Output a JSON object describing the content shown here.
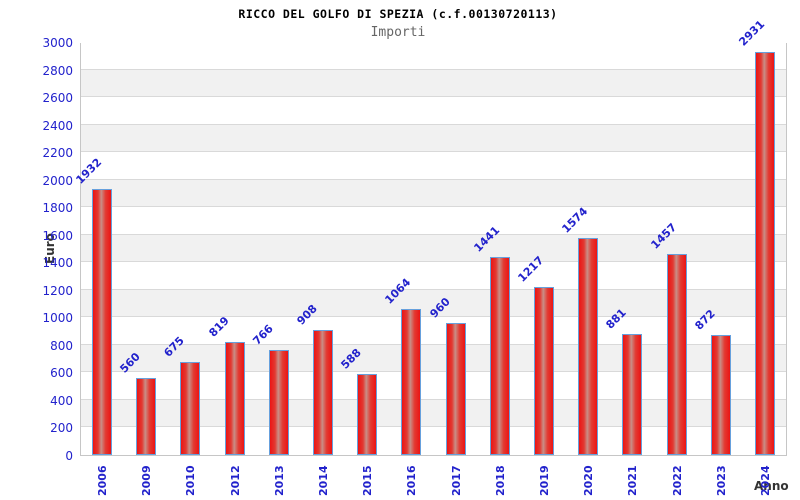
{
  "title": "RICCO DEL GOLFO DI SPEZIA (c.f.00130720113)",
  "subtitle": "Importi",
  "chart_data": {
    "type": "bar",
    "title": "RICCO DEL GOLFO DI SPEZIA (c.f.00130720113)",
    "subtitle": "Importi",
    "xlabel": "Anno",
    "ylabel": "Euro",
    "categories": [
      "2006",
      "2009",
      "2010",
      "2012",
      "2013",
      "2014",
      "2015",
      "2016",
      "2017",
      "2018",
      "2019",
      "2020",
      "2021",
      "2022",
      "2023",
      "2024"
    ],
    "values": [
      1932,
      560,
      675,
      819,
      766,
      908,
      588,
      1064,
      960,
      1441,
      1217,
      1574,
      881,
      1457,
      872,
      2931
    ],
    "ylim": [
      0,
      3000
    ],
    "ytick_step": 200,
    "grid": "horizontal-bands",
    "legend": "none",
    "bar_value_labels_rotation_deg": -45,
    "x_tick_rotation_deg": -90
  },
  "colors": {
    "tick_text": "#2222cc",
    "value_label_text": "#2222cc",
    "bar_edge": "#66a0dd",
    "bar_fill_outer": "#ec1414",
    "bar_fill_center": "#c98e86",
    "band_gray": "#f1f1f1",
    "band_white": "#ffffff",
    "gridline": "#d9d9d9",
    "plot_border": "#c6c6c6",
    "title_text": "#000000",
    "subtitle_text": "#666666",
    "axis_label_text": "#333333"
  }
}
